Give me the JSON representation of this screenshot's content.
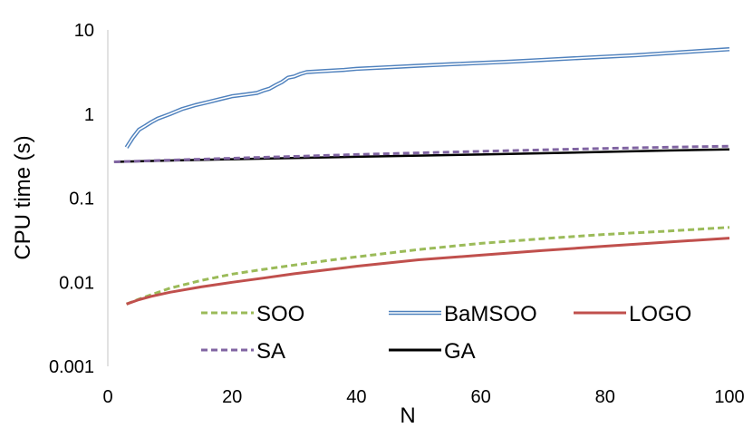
{
  "chart_data": {
    "type": "line",
    "xlabel": "N",
    "ylabel": "CPU time (s)",
    "xlim": [
      0,
      100
    ],
    "ylim": [
      0.001,
      10
    ],
    "yscale": "log",
    "x_ticks": [
      "0",
      "20",
      "40",
      "60",
      "80",
      "100"
    ],
    "y_ticks": [
      "0.001",
      "0.01",
      "0.1",
      "1",
      "10"
    ],
    "grid": false,
    "legend_position": "bottom",
    "series": [
      {
        "name": "SOO",
        "color": "#9BBB59",
        "style": "dashed",
        "x": [
          3,
          5,
          7,
          10,
          15,
          20,
          25,
          30,
          35,
          40,
          50,
          60,
          70,
          80,
          90,
          100
        ],
        "y": [
          0.0055,
          0.0063,
          0.0071,
          0.0085,
          0.0105,
          0.0125,
          0.0142,
          0.016,
          0.018,
          0.02,
          0.0245,
          0.029,
          0.033,
          0.037,
          0.0405,
          0.045
        ]
      },
      {
        "name": "BaMSOO",
        "color": "#4F81BD",
        "style": "double",
        "x": [
          3,
          4,
          5,
          6,
          7,
          8,
          10,
          12,
          14,
          16,
          18,
          20,
          22,
          24,
          25,
          26,
          27,
          28,
          29,
          30,
          31,
          32,
          35,
          38,
          40,
          45,
          50,
          55,
          60,
          65,
          70,
          75,
          80,
          85,
          90,
          95,
          100
        ],
        "y": [
          0.4,
          0.52,
          0.65,
          0.72,
          0.8,
          0.88,
          1.0,
          1.15,
          1.27,
          1.38,
          1.5,
          1.63,
          1.7,
          1.78,
          1.9,
          2.0,
          2.2,
          2.4,
          2.7,
          2.8,
          3.0,
          3.15,
          3.25,
          3.35,
          3.45,
          3.6,
          3.75,
          3.9,
          4.05,
          4.2,
          4.4,
          4.6,
          4.8,
          5.0,
          5.3,
          5.6,
          5.9
        ]
      },
      {
        "name": "LOGO",
        "color": "#C0504D",
        "style": "solid",
        "x": [
          3,
          5,
          7,
          10,
          15,
          20,
          25,
          30,
          35,
          40,
          50,
          60,
          70,
          80,
          90,
          100
        ],
        "y": [
          0.0055,
          0.0062,
          0.0068,
          0.0076,
          0.0088,
          0.01,
          0.0112,
          0.0126,
          0.014,
          0.0155,
          0.0185,
          0.021,
          0.0238,
          0.0268,
          0.03,
          0.0335
        ]
      },
      {
        "name": "SA",
        "color": "#8064A2",
        "style": "dashed",
        "x": [
          1,
          10,
          20,
          30,
          40,
          50,
          60,
          70,
          80,
          90,
          100
        ],
        "y": [
          0.27,
          0.283,
          0.298,
          0.313,
          0.33,
          0.345,
          0.36,
          0.375,
          0.39,
          0.403,
          0.415
        ]
      },
      {
        "name": "GA",
        "color": "#000000",
        "style": "solid",
        "x": [
          1,
          10,
          20,
          30,
          40,
          50,
          60,
          70,
          80,
          90,
          100
        ],
        "y": [
          0.27,
          0.28,
          0.29,
          0.3,
          0.31,
          0.32,
          0.33,
          0.342,
          0.355,
          0.368,
          0.38
        ]
      }
    ]
  }
}
